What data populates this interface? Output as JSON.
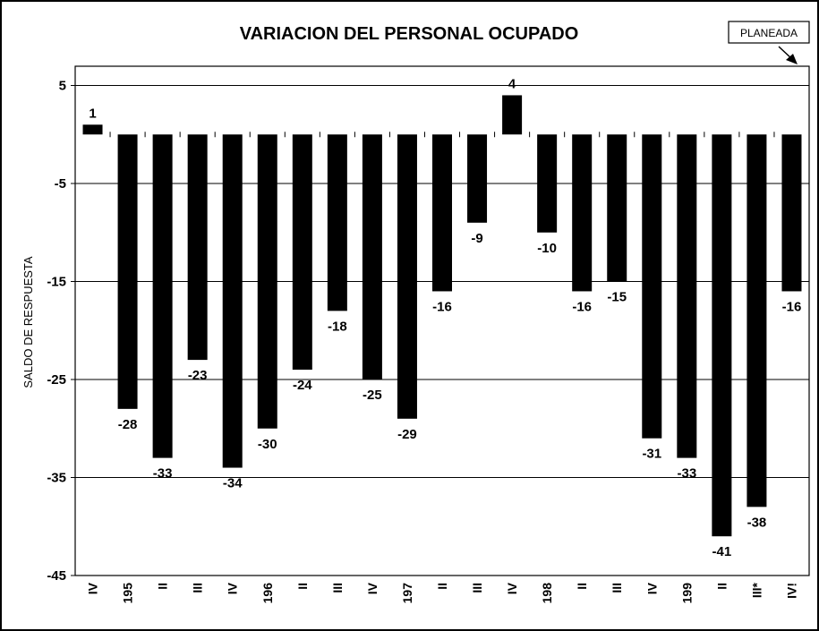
{
  "chart_data": {
    "type": "bar",
    "title": "VARIACION DEL PERSONAL OCUPADO",
    "ylabel": "SALDO DE RESPUESTA",
    "xlabel": "",
    "ylim": [
      -45,
      10
    ],
    "yticks": [
      5,
      -5,
      -15,
      -25,
      -35,
      -45
    ],
    "grid": true,
    "categories": [
      "IV",
      "195",
      "II",
      "III",
      "IV",
      "196",
      "II",
      "III",
      "IV",
      "197",
      "II",
      "III",
      "IV",
      "198",
      "II",
      "III",
      "IV",
      "199",
      "II",
      "III*",
      "IV!"
    ],
    "values": [
      1,
      -28,
      -33,
      -23,
      -34,
      -30,
      -24,
      -18,
      -25,
      -29,
      -16,
      -9,
      4,
      -10,
      -16,
      -15,
      -31,
      -33,
      -41,
      -38,
      -16
    ],
    "data_labels": [
      "1",
      "-28",
      "-33",
      "-23",
      "-34",
      "-30",
      "-24",
      "-18",
      "-25",
      "-29",
      "-16",
      "-9",
      "4",
      "-10",
      "-16",
      "-15",
      "-31",
      "-33",
      "-41",
      "-38",
      "-16"
    ],
    "bar_color": "#000000",
    "annotation": "PLANEADA"
  }
}
